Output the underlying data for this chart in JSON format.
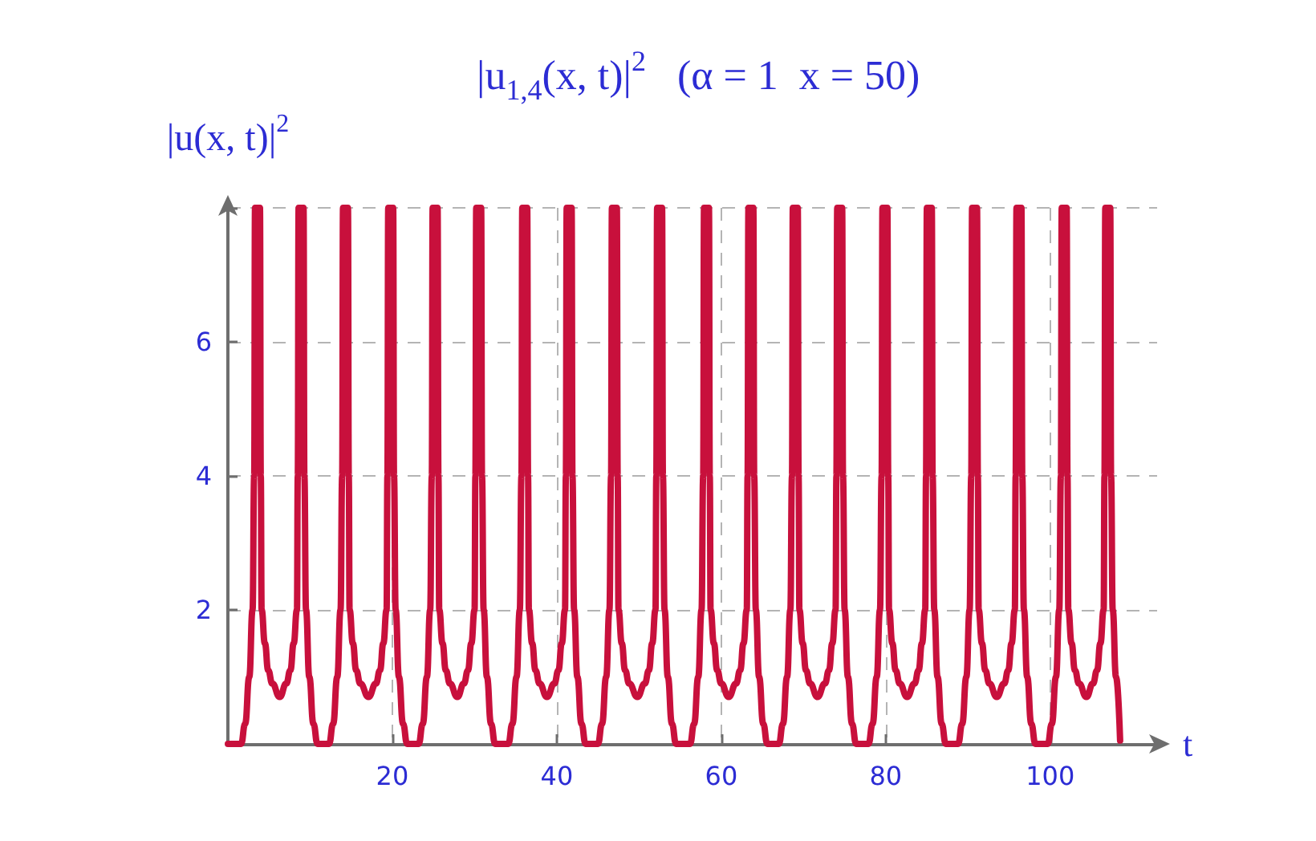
{
  "chart_data": {
    "type": "line",
    "title": "|u$_{1,4}$(x, t)|$^{2}$   (α = 1  x = 50)",
    "xlabel": "t",
    "ylabel": "|u(x, t)|$^{2}$",
    "color": "#c8103c",
    "marker": "none",
    "line_style": "solid",
    "grid": true,
    "xlim": [
      0,
      113
    ],
    "xticks": [
      20,
      40,
      60,
      80,
      100
    ],
    "ylim": [
      0,
      8
    ],
    "yticks": [
      2,
      4,
      6,
      {
        "value": 8,
        "label": null
      }
    ],
    "x": [
      0,
      1.6,
      2.1,
      2.6,
      3.0,
      3.2,
      3.3,
      3.9,
      4.0,
      4.1,
      4.5,
      4.9,
      5.4,
      6.3,
      7.1,
      7.6,
      8.0,
      8.4,
      8.5,
      8.6,
      9.2,
      9.3,
      9.5,
      9.9,
      10.4,
      10.9,
      12.3,
      12.8,
      13.3,
      13.7,
      13.9,
      14.0,
      14.6,
      14.7,
      14.8,
      15.2,
      15.6,
      16.1,
      17.1,
      18.0,
      18.5,
      18.9,
      19.3,
      19.4,
      19.5,
      20.1,
      20.2,
      20.4,
      20.8,
      21.3,
      21.8,
      23.2,
      23.7,
      24.2,
      24.6,
      24.8,
      24.9,
      25.5,
      25.6,
      25.7,
      26.1,
      26.5,
      27.0,
      27.9,
      28.7,
      29.2,
      29.6,
      30.0,
      30.1,
      30.2,
      30.8,
      30.9,
      31.1,
      31.5,
      32.0,
      32.5,
      34.1,
      34.6,
      35.1,
      35.5,
      35.7,
      35.8,
      36.4,
      36.5,
      36.6,
      37.0,
      37.4,
      37.9,
      38.8,
      39.7,
      40.2,
      40.6,
      41.0,
      41.1,
      41.2,
      41.8,
      41.9,
      42.1,
      42.5,
      43.0,
      43.5,
      45.0,
      45.5,
      46.0,
      46.4,
      46.6,
      46.7,
      47.3,
      47.4,
      47.5,
      47.9,
      48.3,
      48.8,
      49.8,
      50.7,
      51.2,
      51.6,
      52.0,
      52.1,
      52.2,
      52.8,
      52.9,
      53.1,
      53.5,
      54.0,
      54.5,
      56.2,
      56.7,
      57.2,
      57.6,
      57.8,
      57.9,
      58.5,
      58.6,
      58.7,
      59.1,
      59.5,
      60.0,
      60.9,
      61.8,
      62.3,
      62.7,
      63.1,
      63.2,
      63.3,
      63.9,
      64.0,
      64.2,
      64.6,
      65.1,
      65.6,
      67.0,
      67.5,
      68.0,
      68.4,
      68.6,
      68.7,
      69.3,
      69.4,
      69.5,
      69.9,
      70.3,
      70.8,
      71.7,
      72.6,
      73.1,
      73.5,
      73.9,
      74.0,
      74.1,
      74.7,
      74.8,
      75.0,
      75.4,
      75.9,
      76.4,
      77.9,
      78.4,
      78.9,
      79.3,
      79.5,
      79.6,
      80.2,
      80.3,
      80.4,
      80.8,
      81.2,
      81.7,
      82.6,
      83.5,
      84.0,
      84.4,
      84.8,
      84.9,
      85.0,
      85.6,
      85.7,
      85.9,
      86.3,
      86.8,
      87.3,
      88.8,
      89.3,
      89.8,
      90.2,
      90.4,
      90.5,
      91.1,
      91.2,
      91.3,
      91.7,
      92.1,
      92.6,
      93.5,
      94.4,
      94.9,
      95.3,
      95.7,
      95.8,
      95.9,
      96.5,
      96.6,
      96.8,
      97.2,
      97.7,
      98.2,
      99.7,
      100.2,
      100.7,
      101.1,
      101.3,
      101.4,
      102.0,
      102.1,
      102.2,
      102.6,
      103.0,
      103.5,
      104.4,
      105.2,
      105.7,
      106.1,
      106.5,
      106.6,
      106.7,
      107.3,
      107.4,
      107.6,
      108.0,
      108.5
    ],
    "values": [
      0,
      0,
      0.3,
      1.0,
      2,
      4,
      8,
      8,
      4,
      2,
      1.5,
      1.1,
      0.9,
      0.7,
      0.9,
      1.1,
      1.5,
      2,
      4,
      8,
      8,
      4,
      2,
      1.0,
      0.3,
      0,
      0,
      0.3,
      1.0,
      2,
      4,
      8,
      8,
      4,
      2,
      1.5,
      1.1,
      0.9,
      0.7,
      0.9,
      1.1,
      1.5,
      2,
      4,
      8,
      8,
      4,
      2,
      1.0,
      0.3,
      0,
      0,
      0.3,
      1.0,
      2,
      4,
      8,
      8,
      4,
      2,
      1.5,
      1.1,
      0.9,
      0.7,
      0.9,
      1.1,
      1.5,
      2,
      4,
      8,
      8,
      4,
      2,
      1.0,
      0.3,
      0,
      0,
      0.3,
      1.0,
      2,
      4,
      8,
      8,
      4,
      2,
      1.5,
      1.1,
      0.9,
      0.7,
      0.9,
      1.1,
      1.5,
      2,
      4,
      8,
      8,
      4,
      2,
      1.0,
      0.3,
      0,
      0,
      0.3,
      1.0,
      2,
      4,
      8,
      8,
      4,
      2,
      1.5,
      1.1,
      0.9,
      0.7,
      0.9,
      1.1,
      1.5,
      2,
      4,
      8,
      8,
      4,
      2,
      1.0,
      0.3,
      0,
      0,
      0.3,
      1.0,
      2,
      4,
      8,
      8,
      4,
      2,
      1.5,
      1.1,
      0.9,
      0.7,
      0.9,
      1.1,
      1.5,
      2,
      4,
      8,
      8,
      4,
      2,
      1.0,
      0.3,
      0,
      0,
      0.3,
      1.0,
      2,
      4,
      8,
      8,
      4,
      2,
      1.5,
      1.1,
      0.9,
      0.7,
      0.9,
      1.1,
      1.5,
      2,
      4,
      8,
      8,
      4,
      2,
      1.0,
      0.3,
      0,
      0,
      0.3,
      1.0,
      2,
      4,
      8,
      8,
      4,
      2,
      1.5,
      1.1,
      0.9,
      0.7,
      0.9,
      1.1,
      1.5,
      2,
      4,
      8,
      8,
      4,
      2,
      1.0,
      0.3,
      0,
      0,
      0.3,
      1.0,
      2,
      4,
      8,
      8,
      4,
      2,
      1.5,
      1.1,
      0.9,
      0.7,
      0.9,
      1.1,
      1.5,
      2,
      4,
      8,
      8,
      4,
      2,
      1.0,
      0.3,
      0,
      0,
      0.3,
      1.0,
      2,
      4,
      8,
      8,
      4,
      2,
      1.5,
      1.1,
      0.9,
      0.7,
      0.9,
      1.1,
      1.5,
      2,
      4,
      8,
      8,
      4,
      2,
      1.0,
      0.05
    ]
  }
}
